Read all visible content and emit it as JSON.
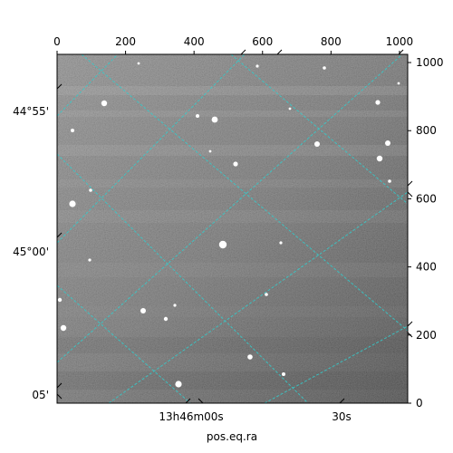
{
  "chart_data": {
    "type": "heatmap",
    "title": "",
    "colormap": "gray",
    "xlabel": "pos.eq.ra",
    "ylabel": "",
    "pixel_axes": {
      "x_range": [
        0,
        1024
      ],
      "y_range": [
        0,
        1024
      ],
      "x_ticks": [
        0,
        200,
        400,
        600,
        800,
        1000
      ],
      "y_ticks": [
        0,
        200,
        400,
        600,
        800,
        1000
      ]
    },
    "world_ticks": {
      "ra_labels": [
        "13h46m00s",
        "30s"
      ],
      "dec_labels": [
        "44°55'",
        "45°00'",
        "05'"
      ]
    },
    "grid": true,
    "grid_color": "#33cccc"
  }
}
